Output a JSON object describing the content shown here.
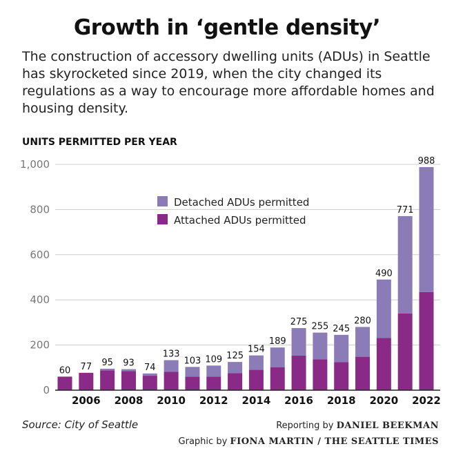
{
  "title": "Growth in ‘gentle density’",
  "subtitle": "The construction of accessory dwelling units (ADUs) in Seattle has skyrocketed since 2019, when the city changed its regulations as a way to encourage more affordable homes and housing density.",
  "footer": {
    "source": "Source: City of Seattle",
    "reporting_prefix": "Reporting by",
    "reporting_name": "DANIEL BEEKMAN",
    "graphic_prefix": "Graphic by",
    "graphic_name": "FIONA MARTIN / THE SEATTLE TIMES"
  },
  "colors": {
    "attached": "#8a2a87",
    "detached": "#8b7bb6",
    "grid": "#cccccc"
  },
  "chart_data": {
    "type": "bar",
    "stacked": true,
    "ylabel": "UNITS PERMITTED PER YEAR",
    "ylim": [
      0,
      1000
    ],
    "yticks": [
      0,
      200,
      400,
      600,
      800,
      1000
    ],
    "ytick_labels": [
      "0",
      "200",
      "400",
      "600",
      "800",
      "1,000"
    ],
    "grid": true,
    "legend_placement": "top-center",
    "categories": [
      2005,
      2006,
      2007,
      2008,
      2009,
      2010,
      2011,
      2012,
      2013,
      2014,
      2015,
      2016,
      2017,
      2018,
      2019,
      2020,
      2021,
      2022
    ],
    "xtick_labels": [
      "2006",
      "2008",
      "2010",
      "2012",
      "2014",
      "2016",
      "2018",
      "2020",
      "2022"
    ],
    "totals": [
      60,
      77,
      95,
      93,
      74,
      133,
      103,
      109,
      125,
      154,
      189,
      275,
      255,
      245,
      280,
      490,
      771,
      988
    ],
    "series": [
      {
        "name": "Attached ADUs permitted",
        "values": [
          60,
          77,
          88,
          84,
          64,
          81,
          60,
          60,
          75,
          90,
          102,
          153,
          137,
          124,
          148,
          231,
          340,
          435
        ]
      },
      {
        "name": "Detached ADUs permitted",
        "values": [
          0,
          0,
          7,
          9,
          10,
          52,
          43,
          49,
          50,
          64,
          87,
          122,
          118,
          121,
          132,
          259,
          431,
          553
        ]
      }
    ]
  }
}
